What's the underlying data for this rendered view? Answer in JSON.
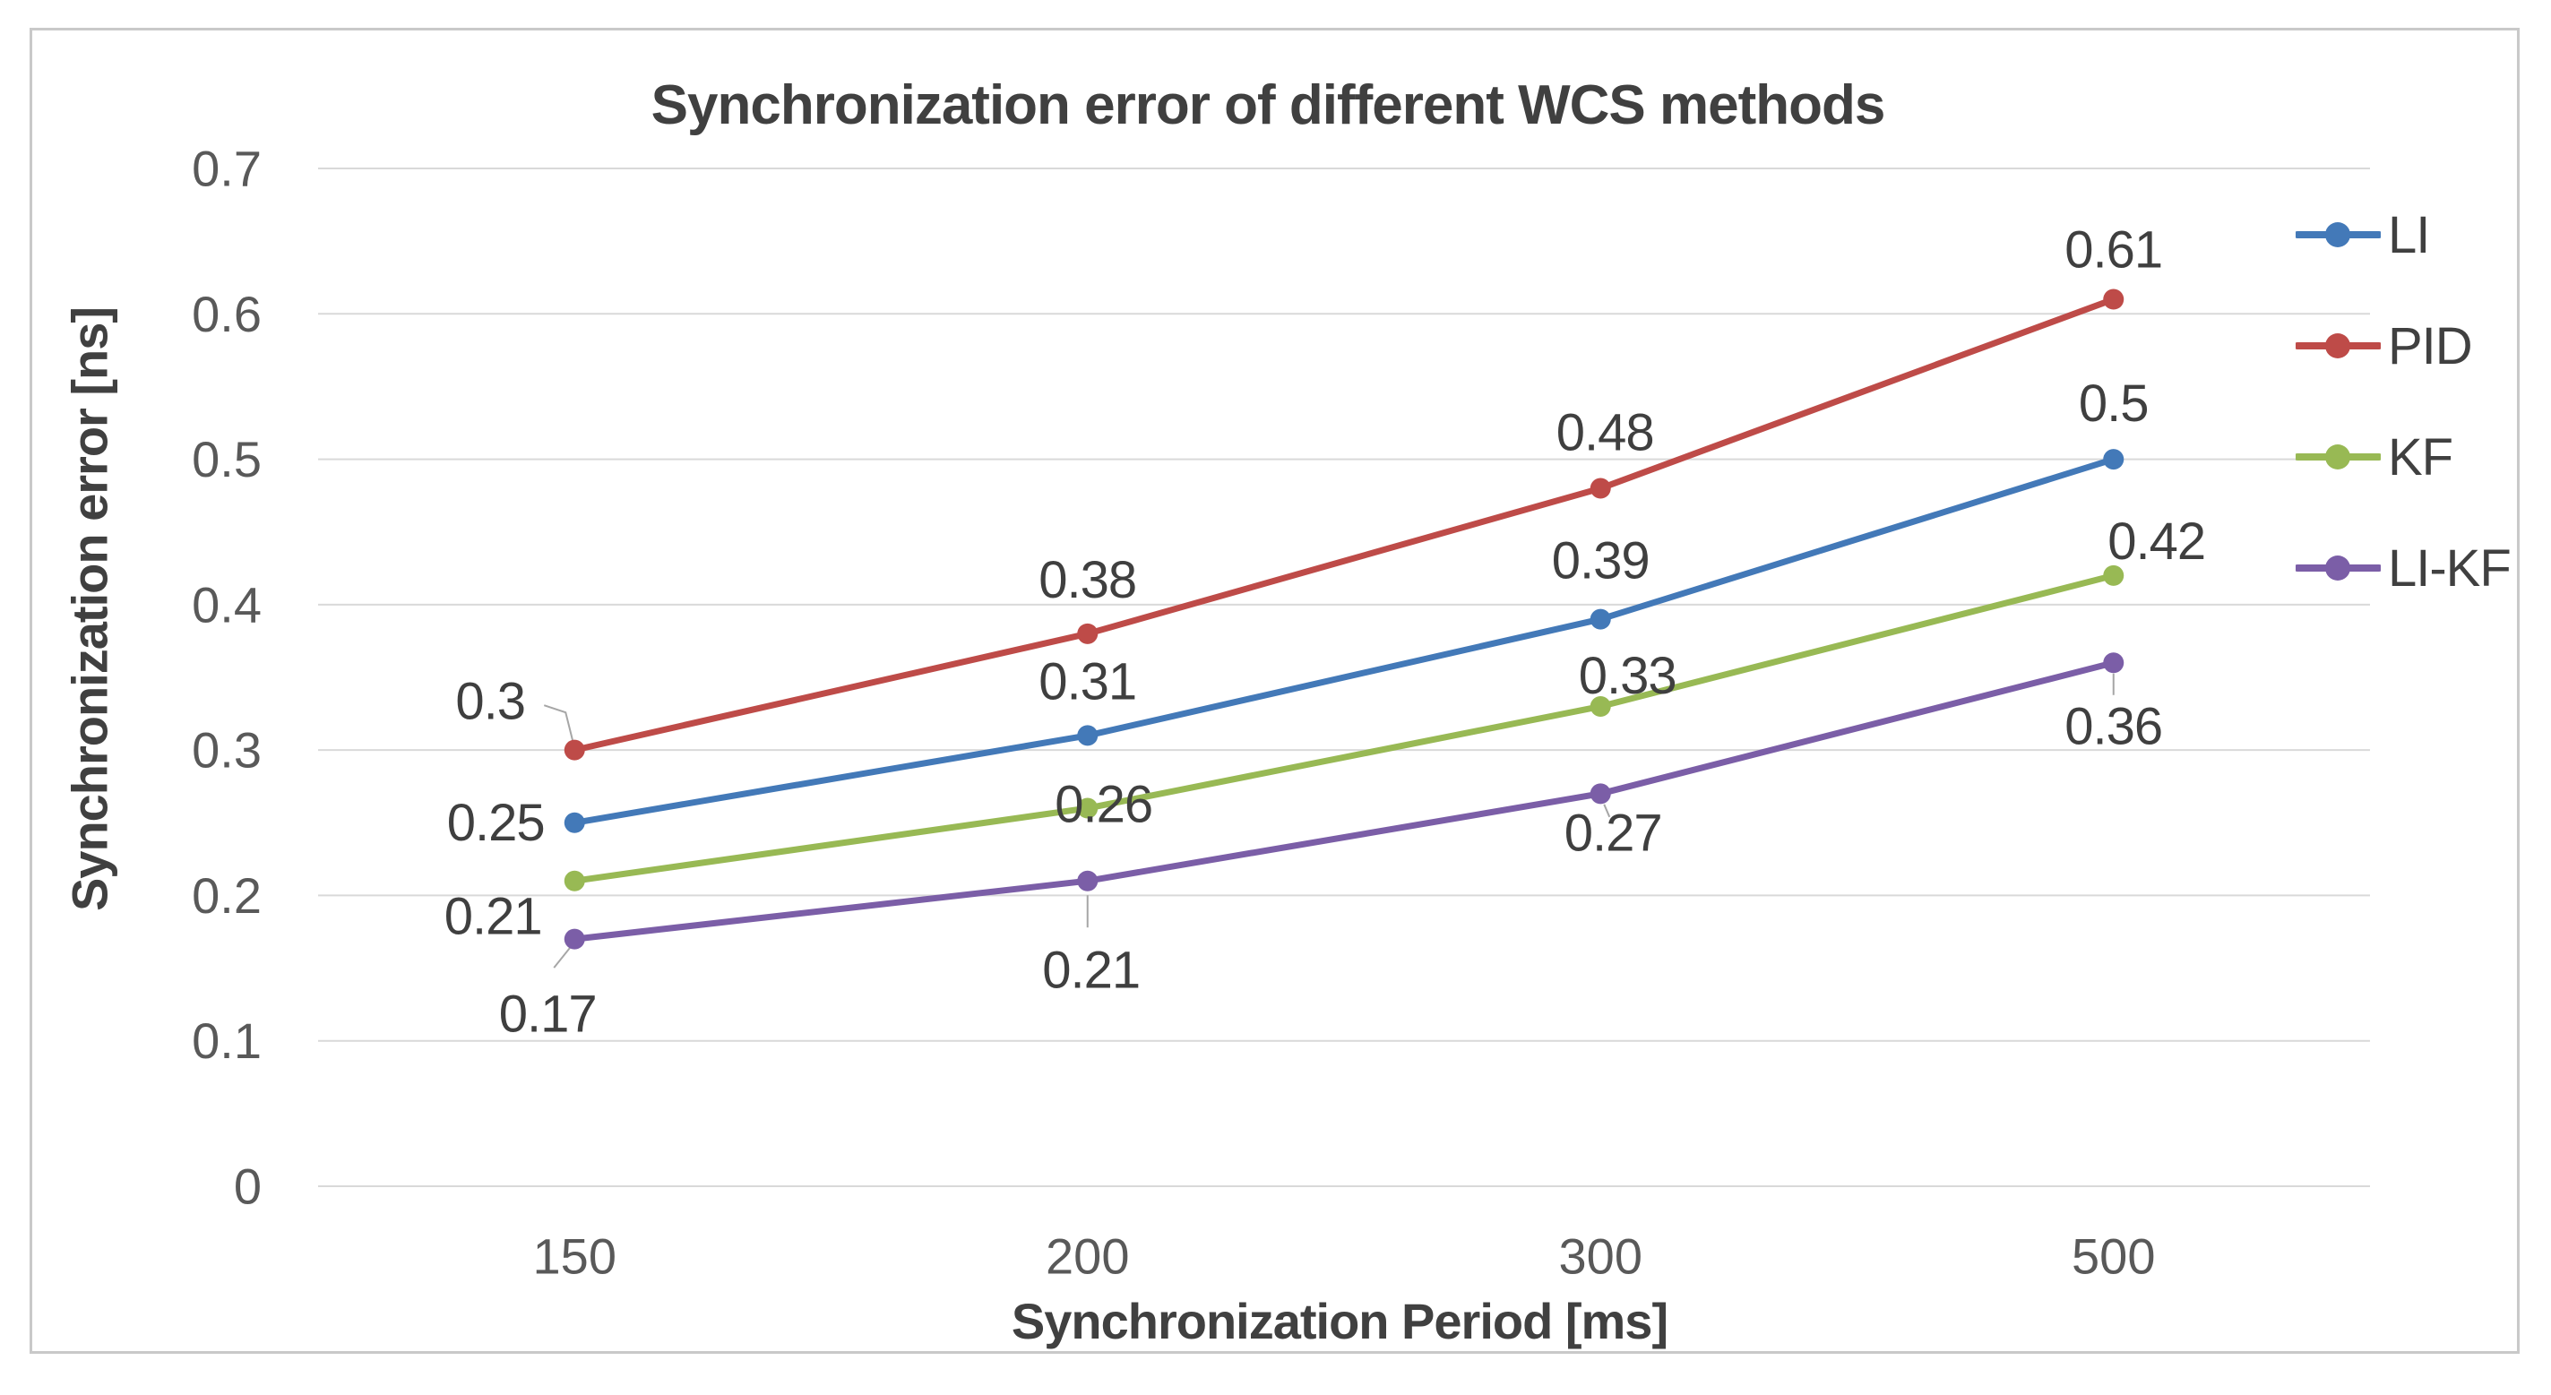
{
  "chart_data": {
    "type": "line",
    "title": "Synchronization error of different WCS methods",
    "xlabel": "Synchronization Period [ms]",
    "ylabel": "Synchronization error [ns]",
    "categories": [
      "150",
      "200",
      "300",
      "500"
    ],
    "yticks": [
      "0",
      "0.1",
      "0.2",
      "0.3",
      "0.4",
      "0.5",
      "0.6",
      "0.7"
    ],
    "ylim": [
      0,
      0.7
    ],
    "grid": true,
    "legend_position": "right",
    "series": [
      {
        "name": "LI",
        "color": "#4379b8",
        "values": [
          0.25,
          0.31,
          0.39,
          0.5
        ],
        "labels": [
          "0.25",
          "0.31",
          "0.39",
          "0.5"
        ],
        "label_offsets": [
          [
            -88,
            0
          ],
          [
            0,
            -60
          ],
          [
            0,
            -65
          ],
          [
            0,
            -62
          ]
        ],
        "leaders": [
          null,
          null,
          null,
          null
        ]
      },
      {
        "name": "PID",
        "color": "#be4b48",
        "values": [
          0.3,
          0.38,
          0.48,
          0.61
        ],
        "labels": [
          "0.3",
          "0.38",
          "0.48",
          "0.61"
        ],
        "label_offsets": [
          [
            -94,
            -54
          ],
          [
            0,
            -60
          ],
          [
            5,
            -62
          ],
          [
            0,
            -55
          ]
        ],
        "leaders": [
          [
            [
              -34,
              -50
            ],
            [
              -10,
              -42
            ],
            [
              -2,
              -10
            ]
          ],
          null,
          null,
          null
        ]
      },
      {
        "name": "KF",
        "color": "#98b954",
        "values": [
          0.21,
          0.26,
          0.33,
          0.42
        ],
        "labels": [
          "0.21",
          "0.26",
          "0.33",
          "0.42"
        ],
        "label_offsets": [
          [
            -91,
            40
          ],
          [
            18,
            -4
          ],
          [
            30,
            -34
          ],
          [
            48,
            -38
          ]
        ],
        "leaders": [
          null,
          null,
          null,
          null
        ]
      },
      {
        "name": "LI-KF",
        "color": "#7b5ea7",
        "values": [
          0.17,
          0.21,
          0.27,
          0.36
        ],
        "labels": [
          "0.17",
          "0.21",
          "0.27",
          "0.36"
        ],
        "label_offsets": [
          [
            -30,
            84
          ],
          [
            4,
            100
          ],
          [
            14,
            44
          ],
          [
            0,
            71
          ]
        ],
        "leaders": [
          [
            [
              -23,
              32
            ],
            [
              -3,
              7
            ]
          ],
          [
            [
              0,
              16
            ],
            [
              0,
              52
            ]
          ],
          [
            [
              4,
              12
            ],
            [
              10,
              26
            ]
          ],
          [
            [
              0,
              12
            ],
            [
              0,
              36
            ]
          ]
        ]
      }
    ]
  },
  "colors": {
    "grid": "#d9d9d9",
    "tick_text": "#595959",
    "data_label_text": "#3f3f3f",
    "leader": "#a6a6a6",
    "frame_border": "#c9c9c9",
    "background": "#ffffff"
  }
}
